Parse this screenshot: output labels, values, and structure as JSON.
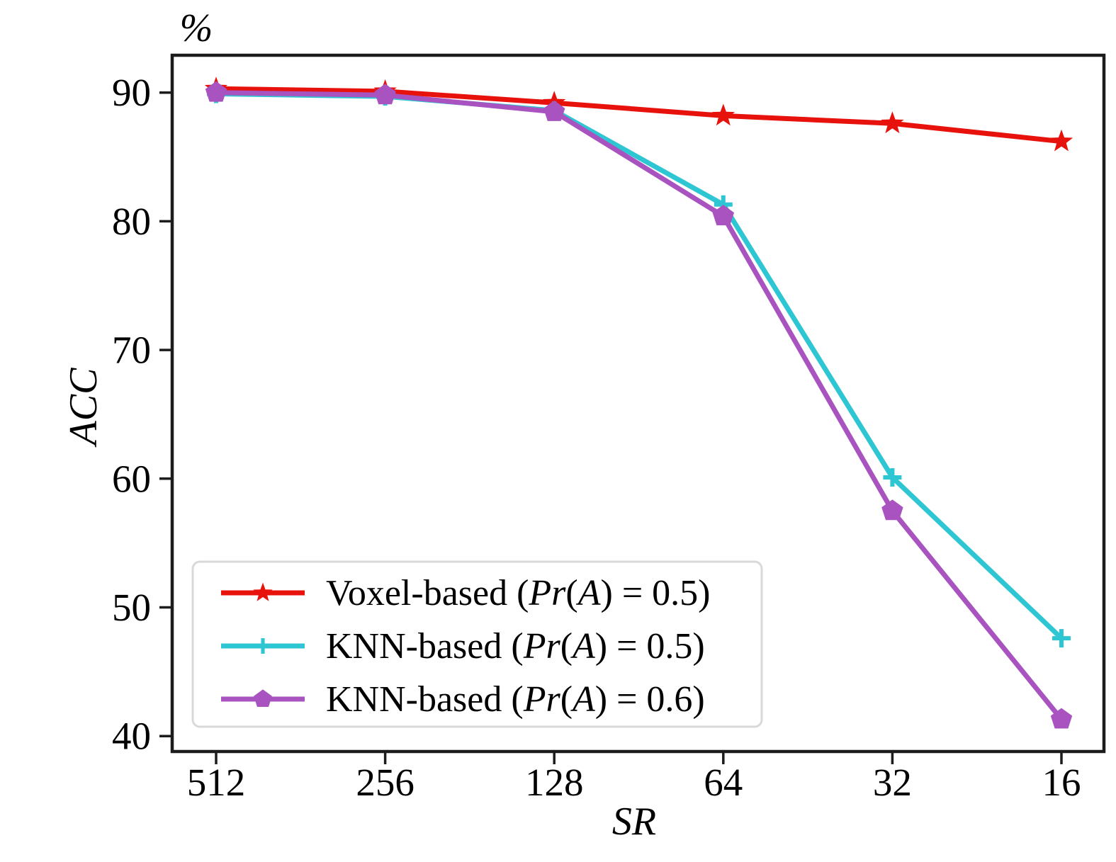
{
  "chart_data": {
    "type": "line",
    "title": "",
    "xlabel": "SR",
    "ylabel": "ACC",
    "y_unit_label": "%",
    "x_categories": [
      "512",
      "256",
      "128",
      "64",
      "32",
      "16"
    ],
    "y_ticks": [
      {
        "label": "90",
        "value": 90
      },
      {
        "label": "80",
        "value": 80
      },
      {
        "label": "70",
        "value": 70
      },
      {
        "label": "60",
        "value": 60
      },
      {
        "label": "50",
        "value": 50
      },
      {
        "label": "40",
        "value": 40
      }
    ],
    "ylim": [
      38.8,
      92.9
    ],
    "grid": false,
    "legend_position": "lower-left",
    "series": [
      {
        "name": "Voxel-based (Pr(A) = 0.5)",
        "marker": "star",
        "color": "#e8120d",
        "values": [
          90.3,
          90.1,
          89.2,
          88.2,
          87.6,
          86.2
        ],
        "legend_runs": [
          {
            "t": "Voxel-based ("
          },
          {
            "t": "Pr",
            "i": true
          },
          {
            "t": "("
          },
          {
            "t": "A",
            "i": true
          },
          {
            "t": ") = 0.5)"
          }
        ]
      },
      {
        "name": "KNN-based (Pr(A) = 0.5)",
        "marker": "plus",
        "color": "#2fc6d3",
        "values": [
          89.9,
          89.7,
          88.6,
          81.3,
          60.1,
          47.6
        ],
        "legend_runs": [
          {
            "t": "KNN-based ("
          },
          {
            "t": "Pr",
            "i": true
          },
          {
            "t": "("
          },
          {
            "t": "A",
            "i": true
          },
          {
            "t": ") = 0.5)"
          }
        ]
      },
      {
        "name": "KNN-based (Pr(A) = 0.6)",
        "marker": "pentagon",
        "color": "#a853bf",
        "values": [
          90.0,
          89.8,
          88.5,
          80.4,
          57.5,
          41.3
        ],
        "legend_runs": [
          {
            "t": "KNN-based ("
          },
          {
            "t": "Pr",
            "i": true
          },
          {
            "t": "("
          },
          {
            "t": "A",
            "i": true
          },
          {
            "t": ") = 0.6)"
          }
        ]
      }
    ],
    "colors": {
      "axis": "#1c1c1c",
      "tick_label": "#000000",
      "legend_border": "#d9d9d9",
      "background": "#ffffff"
    }
  }
}
